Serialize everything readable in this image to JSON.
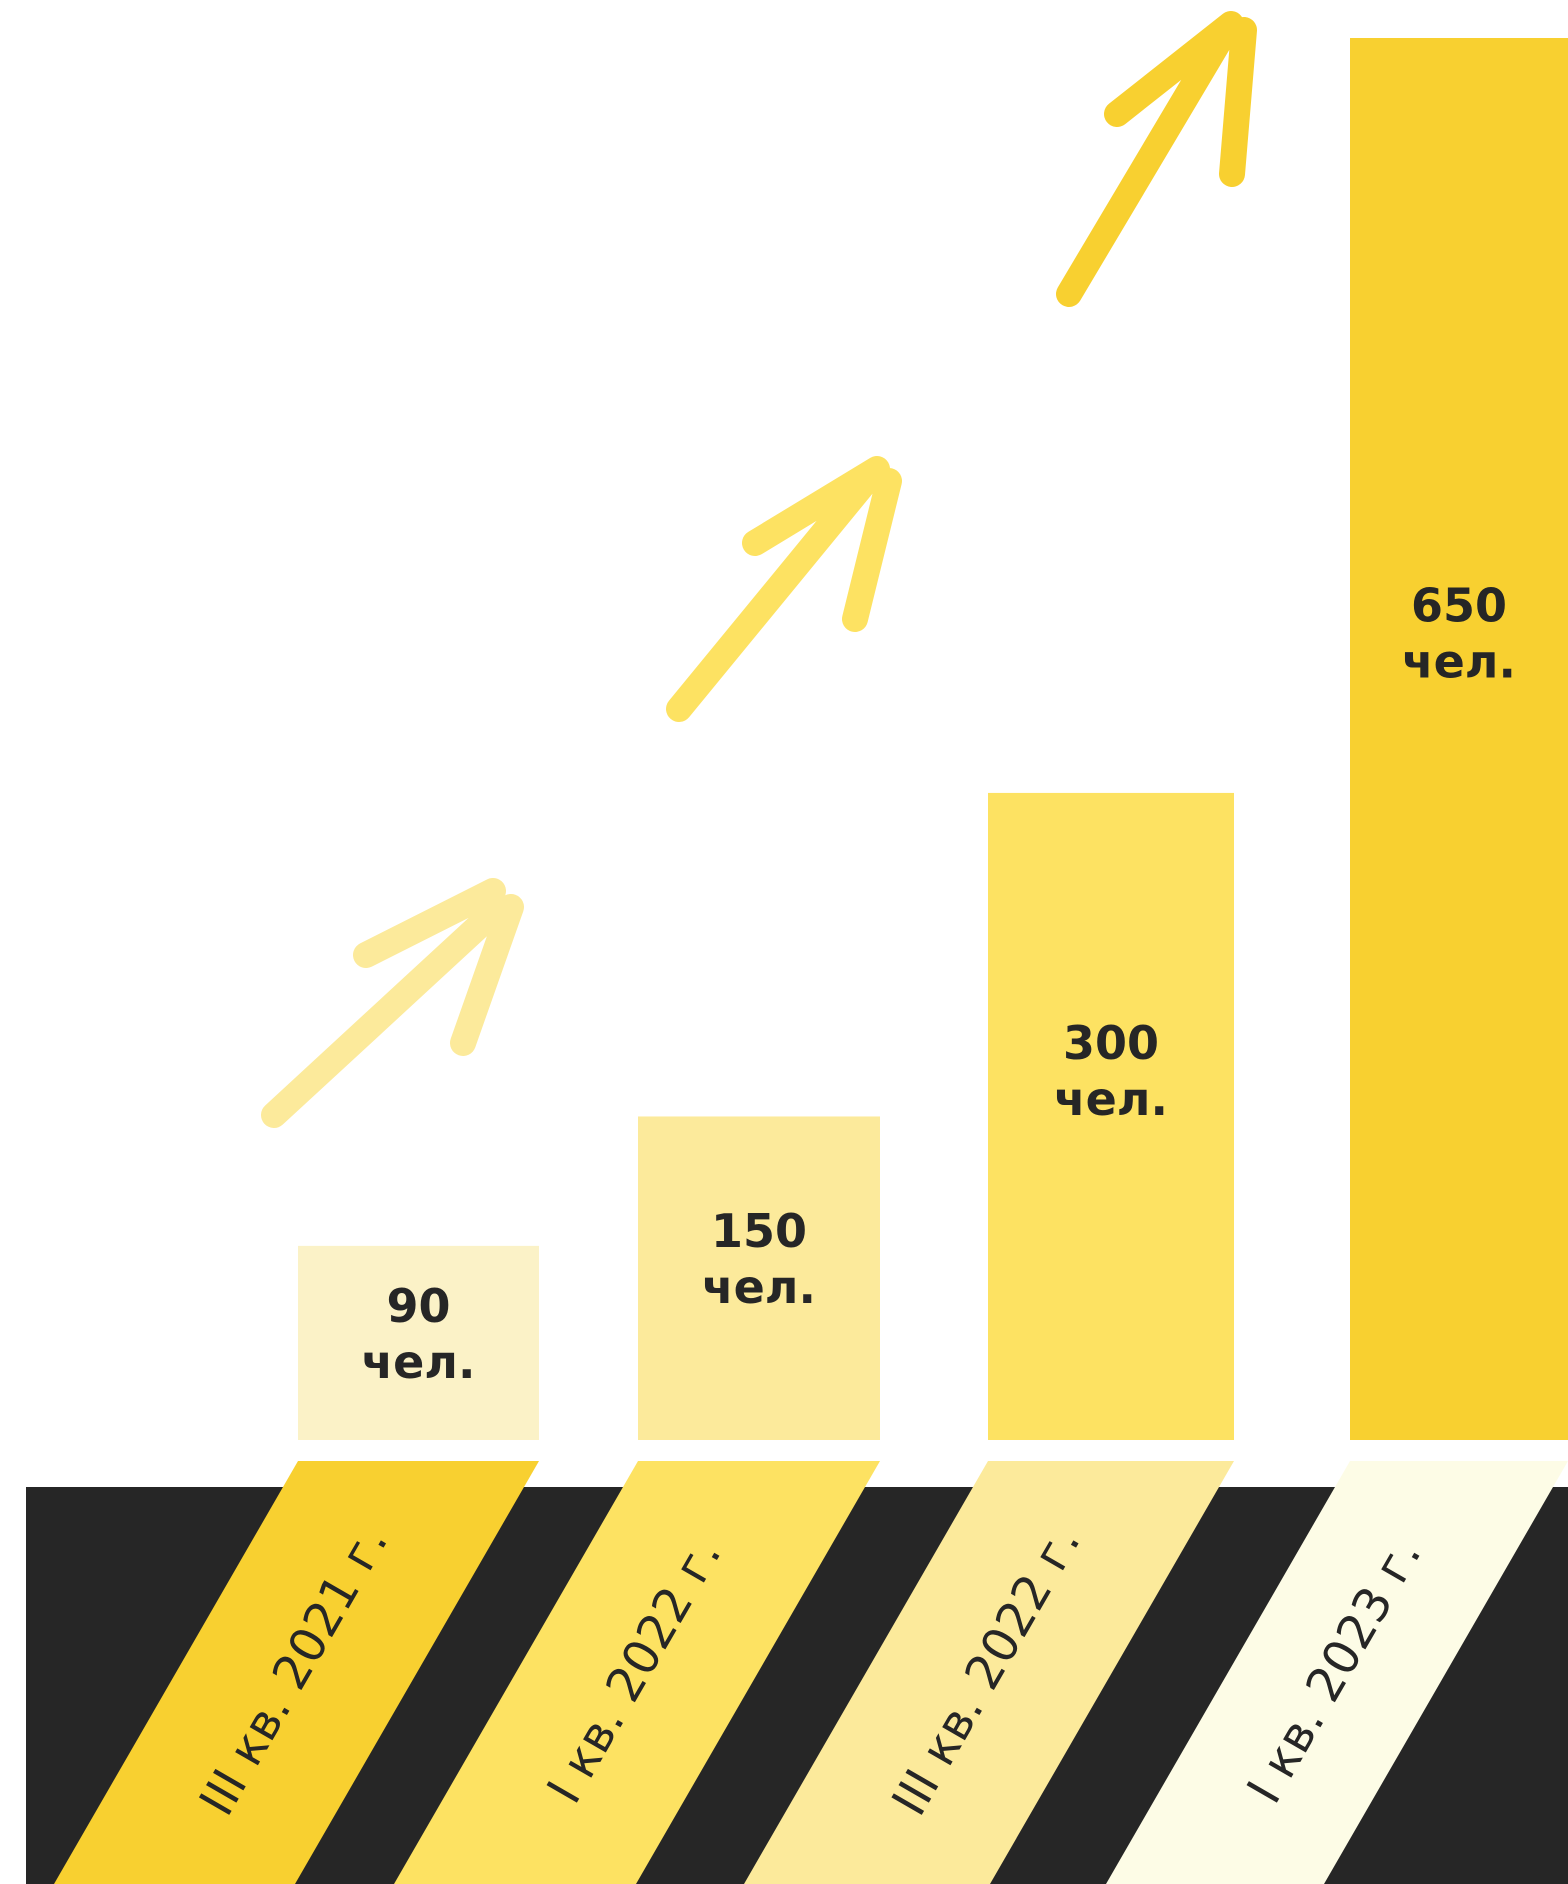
{
  "chart_data": {
    "type": "bar",
    "categories": [
      "III кв. 2021 г.",
      "I кв. 2022 г.",
      "III кв. 2022 г.",
      "I кв. 2023 г."
    ],
    "values": [
      90,
      150,
      300,
      650
    ],
    "value_labels": [
      "90 чел.",
      "150 чел.",
      "300 чел.",
      "650 чел."
    ],
    "colors": [
      "#fbf2c7",
      "#fcea9b",
      "#fde262",
      "#f8d030"
    ],
    "label_colors": [
      "#f8d030",
      "#fde262",
      "#fcea9b",
      "#fdfce6"
    ]
  }
}
